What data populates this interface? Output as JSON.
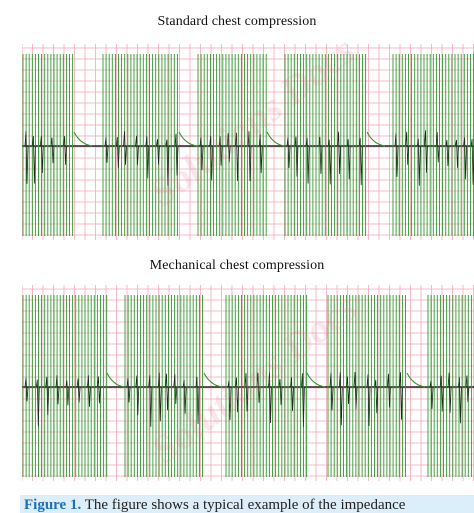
{
  "figure": {
    "panels": [
      {
        "title": "Standard chest compression"
      },
      {
        "title": "Mechanical chest compression"
      }
    ],
    "watermark": "Solutions Docs",
    "caption_label": "Figure 1.",
    "caption_text": "The figure shows a typical example of the impedance"
  },
  "chart_data": [
    {
      "type": "line",
      "title": "Standard chest compression",
      "grid": true,
      "colors": {
        "signal": "#2e9a2e",
        "baseline": "#222222",
        "grid": "#f4a9b8"
      },
      "series": [
        {
          "compression_bursts": [
            [
              0,
              52
            ],
            [
              80,
              157
            ],
            [
              175,
              245
            ],
            [
              262,
              345
            ],
            [
              370,
              452
            ]
          ]
        }
      ]
    },
    {
      "type": "line",
      "title": "Mechanical chest compression",
      "grid": true,
      "colors": {
        "signal": "#2e9a2e",
        "baseline": "#222222",
        "grid": "#f4a9b8"
      },
      "series": [
        {
          "compression_bursts": [
            [
              0,
              85
            ],
            [
              102,
              182
            ],
            [
              203,
              285
            ],
            [
              305,
              385
            ],
            [
              405,
              452
            ]
          ]
        }
      ]
    }
  ]
}
